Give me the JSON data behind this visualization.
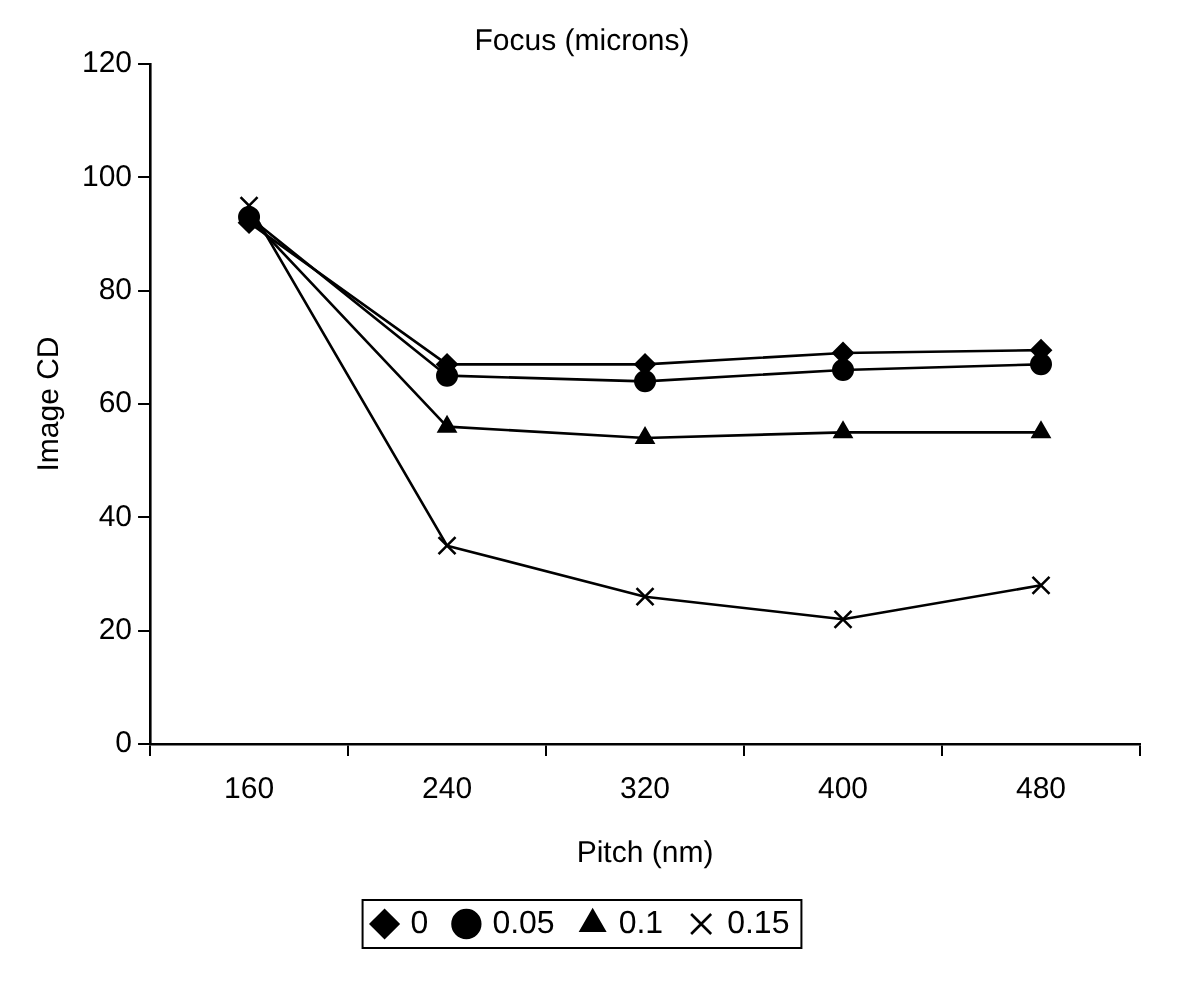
{
  "chart_data": {
    "type": "line",
    "title": "Focus (microns)",
    "xlabel": "Pitch (nm)",
    "ylabel": "Image CD",
    "categories": [
      "160",
      "240",
      "320",
      "400",
      "480"
    ],
    "series": [
      {
        "name": "0",
        "color": "#000000",
        "marker": "diamond",
        "values": [
          92,
          67,
          67,
          69,
          69.5
        ]
      },
      {
        "name": "0.05",
        "color": "#000000",
        "marker": "circle",
        "values": [
          93,
          65,
          64,
          66,
          67
        ]
      },
      {
        "name": "0.1",
        "color": "#000000",
        "marker": "triangle",
        "values": [
          93,
          56,
          54,
          55,
          55
        ]
      },
      {
        "name": "0.15",
        "color": "#000000",
        "marker": "cross",
        "values": [
          95,
          35,
          26,
          22,
          28
        ]
      }
    ],
    "ylim": [
      0,
      120
    ],
    "yticks": [
      0,
      20,
      40,
      60,
      80,
      100,
      120
    ],
    "grid": false,
    "legend": "bottom"
  }
}
